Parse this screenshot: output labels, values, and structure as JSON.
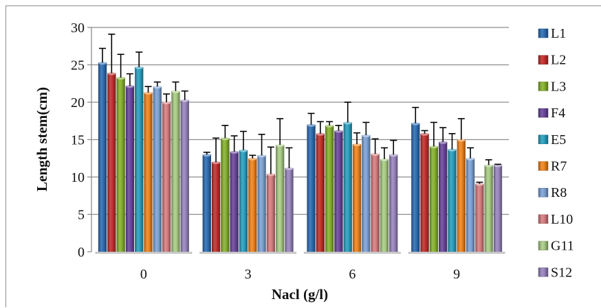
{
  "chart_data": {
    "type": "bar",
    "title": "",
    "xlabel": "Nacl (g/l)",
    "ylabel": "Length stem(cm)",
    "ylim": [
      0,
      30
    ],
    "yticks": [
      0,
      5,
      10,
      15,
      20,
      25,
      30
    ],
    "grid": true,
    "legend_position": "right",
    "categories": [
      "0",
      "3",
      "6",
      "9"
    ],
    "series": [
      {
        "name": "L1",
        "color": "#2e6db4",
        "values": [
          25.3,
          13.0,
          17.0,
          17.2
        ],
        "error_upper": [
          27.2,
          13.3,
          18.5,
          19.3
        ]
      },
      {
        "name": "L2",
        "color": "#c0302d",
        "values": [
          23.9,
          12.0,
          15.8,
          15.8
        ],
        "error_upper": [
          29.1,
          15.2,
          17.4,
          16.2
        ]
      },
      {
        "name": "L3",
        "color": "#86b22e",
        "values": [
          23.3,
          15.2,
          16.9,
          14.1
        ],
        "error_upper": [
          26.4,
          16.9,
          17.4,
          17.3
        ]
      },
      {
        "name": "F4",
        "color": "#6b479c",
        "values": [
          22.2,
          13.4,
          16.2,
          14.7
        ],
        "error_upper": [
          23.8,
          15.5,
          16.9,
          16.6
        ]
      },
      {
        "name": "E5",
        "color": "#2a9fbf",
        "values": [
          24.7,
          13.6,
          17.3,
          13.7
        ],
        "error_upper": [
          26.7,
          16.1,
          20.0,
          15.8
        ]
      },
      {
        "name": "R7",
        "color": "#f0841e",
        "values": [
          21.3,
          12.5,
          14.4,
          15.0
        ],
        "error_upper": [
          22.1,
          12.9,
          15.9,
          17.8
        ]
      },
      {
        "name": "R8",
        "color": "#7ea3d6",
        "values": [
          22.1,
          12.9,
          15.6,
          12.5
        ],
        "error_upper": [
          22.7,
          15.7,
          17.3,
          13.9
        ]
      },
      {
        "name": "L10",
        "color": "#d77d80",
        "values": [
          20.0,
          10.4,
          13.1,
          9.1
        ],
        "error_upper": [
          21.1,
          14.0,
          15.1,
          9.3
        ]
      },
      {
        "name": "G11",
        "color": "#a9cc85",
        "values": [
          21.5,
          14.3,
          12.4,
          11.6
        ],
        "error_upper": [
          22.7,
          17.8,
          13.9,
          12.3
        ]
      },
      {
        "name": "S12",
        "color": "#9885bd",
        "values": [
          20.3,
          11.2,
          13.0,
          11.6
        ],
        "error_upper": [
          21.5,
          13.9,
          14.9,
          11.7
        ]
      }
    ]
  }
}
